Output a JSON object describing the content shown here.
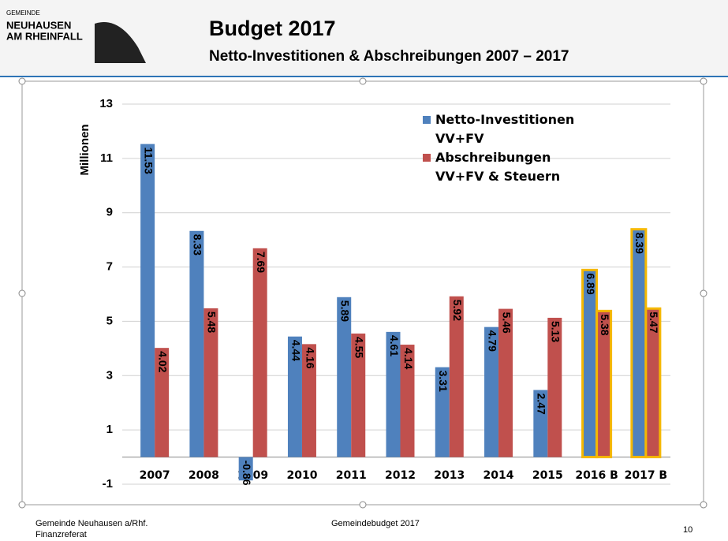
{
  "header": {
    "logo_top": "GEMEINDE",
    "logo_line1": "NEUHAUSEN",
    "logo_line2": "AM RHEINFALL",
    "title": "Budget 2017",
    "subtitle": "Netto-Investitionen & Abschreibungen 2007 – 2017"
  },
  "chart_data": {
    "type": "bar",
    "y_label": "Millionen",
    "categories": [
      "2007",
      "2008",
      "2009",
      "2010",
      "2011",
      "2012",
      "2013",
      "2014",
      "2015",
      "2016 B",
      "2017 B"
    ],
    "series": [
      {
        "name": "Netto-Investitionen VV+FV",
        "color": "#4f81bd",
        "values": [
          11.53,
          8.33,
          -0.86,
          4.44,
          5.89,
          4.61,
          3.31,
          4.79,
          2.47,
          6.89,
          8.39
        ]
      },
      {
        "name": "Abschreibungen VV+FV & Steuern",
        "color": "#c0504d",
        "values": [
          4.02,
          5.48,
          7.69,
          4.16,
          4.55,
          4.14,
          5.92,
          5.46,
          5.13,
          5.38,
          5.47
        ]
      }
    ],
    "ylim": [
      -1,
      13
    ],
    "yticks": [
      -1,
      1,
      3,
      5,
      7,
      9,
      11,
      13
    ],
    "grid": true,
    "highlighted": [
      "2016 B",
      "2017 B"
    ],
    "highlight_color": "#f5b800"
  },
  "footer": {
    "left1": "Gemeinde Neuhausen a/Rhf.",
    "left2": "Finanzreferat",
    "center": "Gemeindebudget 2017",
    "page": "10"
  }
}
